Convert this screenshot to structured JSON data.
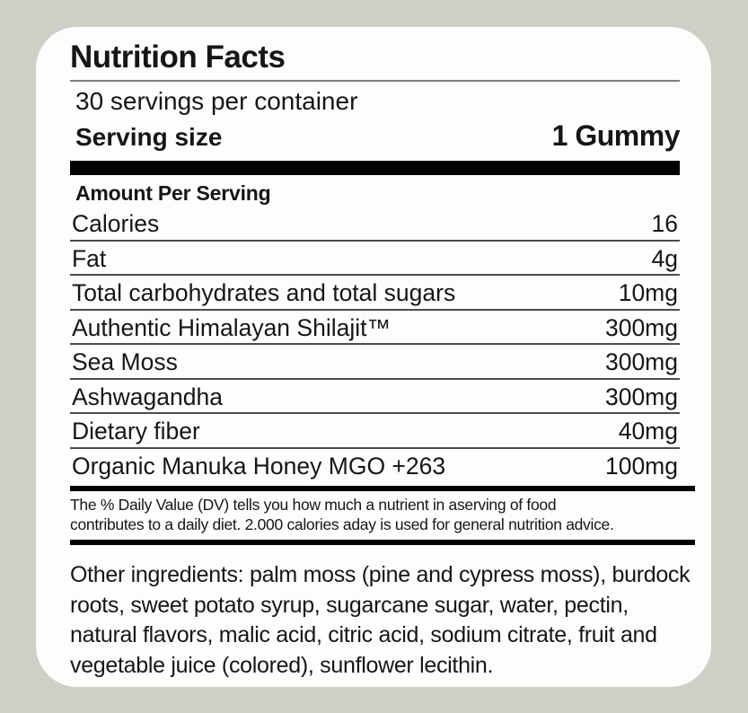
{
  "colors": {
    "page_background": "#cdd0c6",
    "card_background": "#fdfdfc",
    "text": "#161616",
    "bar": "#020202",
    "rule_light": "#7f7f7f",
    "rule_row": "#4c4c4c"
  },
  "label": {
    "title": "Nutrition Facts",
    "servings_per_container": "30 servings per container",
    "serving_size_label": "Serving size",
    "serving_size_value": "1 Gummy",
    "amount_per_serving_heading": "Amount Per Serving",
    "rows": [
      {
        "name": "Calories",
        "value": "16"
      },
      {
        "name": "Fat",
        "value": "4g"
      },
      {
        "name": "Total carbohydrates and total sugars",
        "value": "10mg"
      },
      {
        "name": "Authentic Himalayan Shilajit™",
        "value": "300mg"
      },
      {
        "name": "Sea Moss",
        "value": "300mg"
      },
      {
        "name": "Ashwagandha",
        "value": "300mg"
      },
      {
        "name": "Dietary fiber",
        "value": "40mg"
      },
      {
        "name": "Organic Manuka Honey MGO +263",
        "value": "100mg"
      }
    ],
    "footnote_line1": "The % Daily Value (DV) tells you how much a nutrient in aserving of food",
    "footnote_line2": "contributes to a daily diet. 2.000 calories aday is used for general nutrition advice.",
    "other_ingredients": "Other ingredients: palm moss (pine and cypress moss), burdock roots, sweet potato syrup, sugarcane sugar, water, pectin, natural flavors, malic acid, citric acid, sodium citrate, fruit and vegetable juice (colored), sunflower lecithin."
  }
}
